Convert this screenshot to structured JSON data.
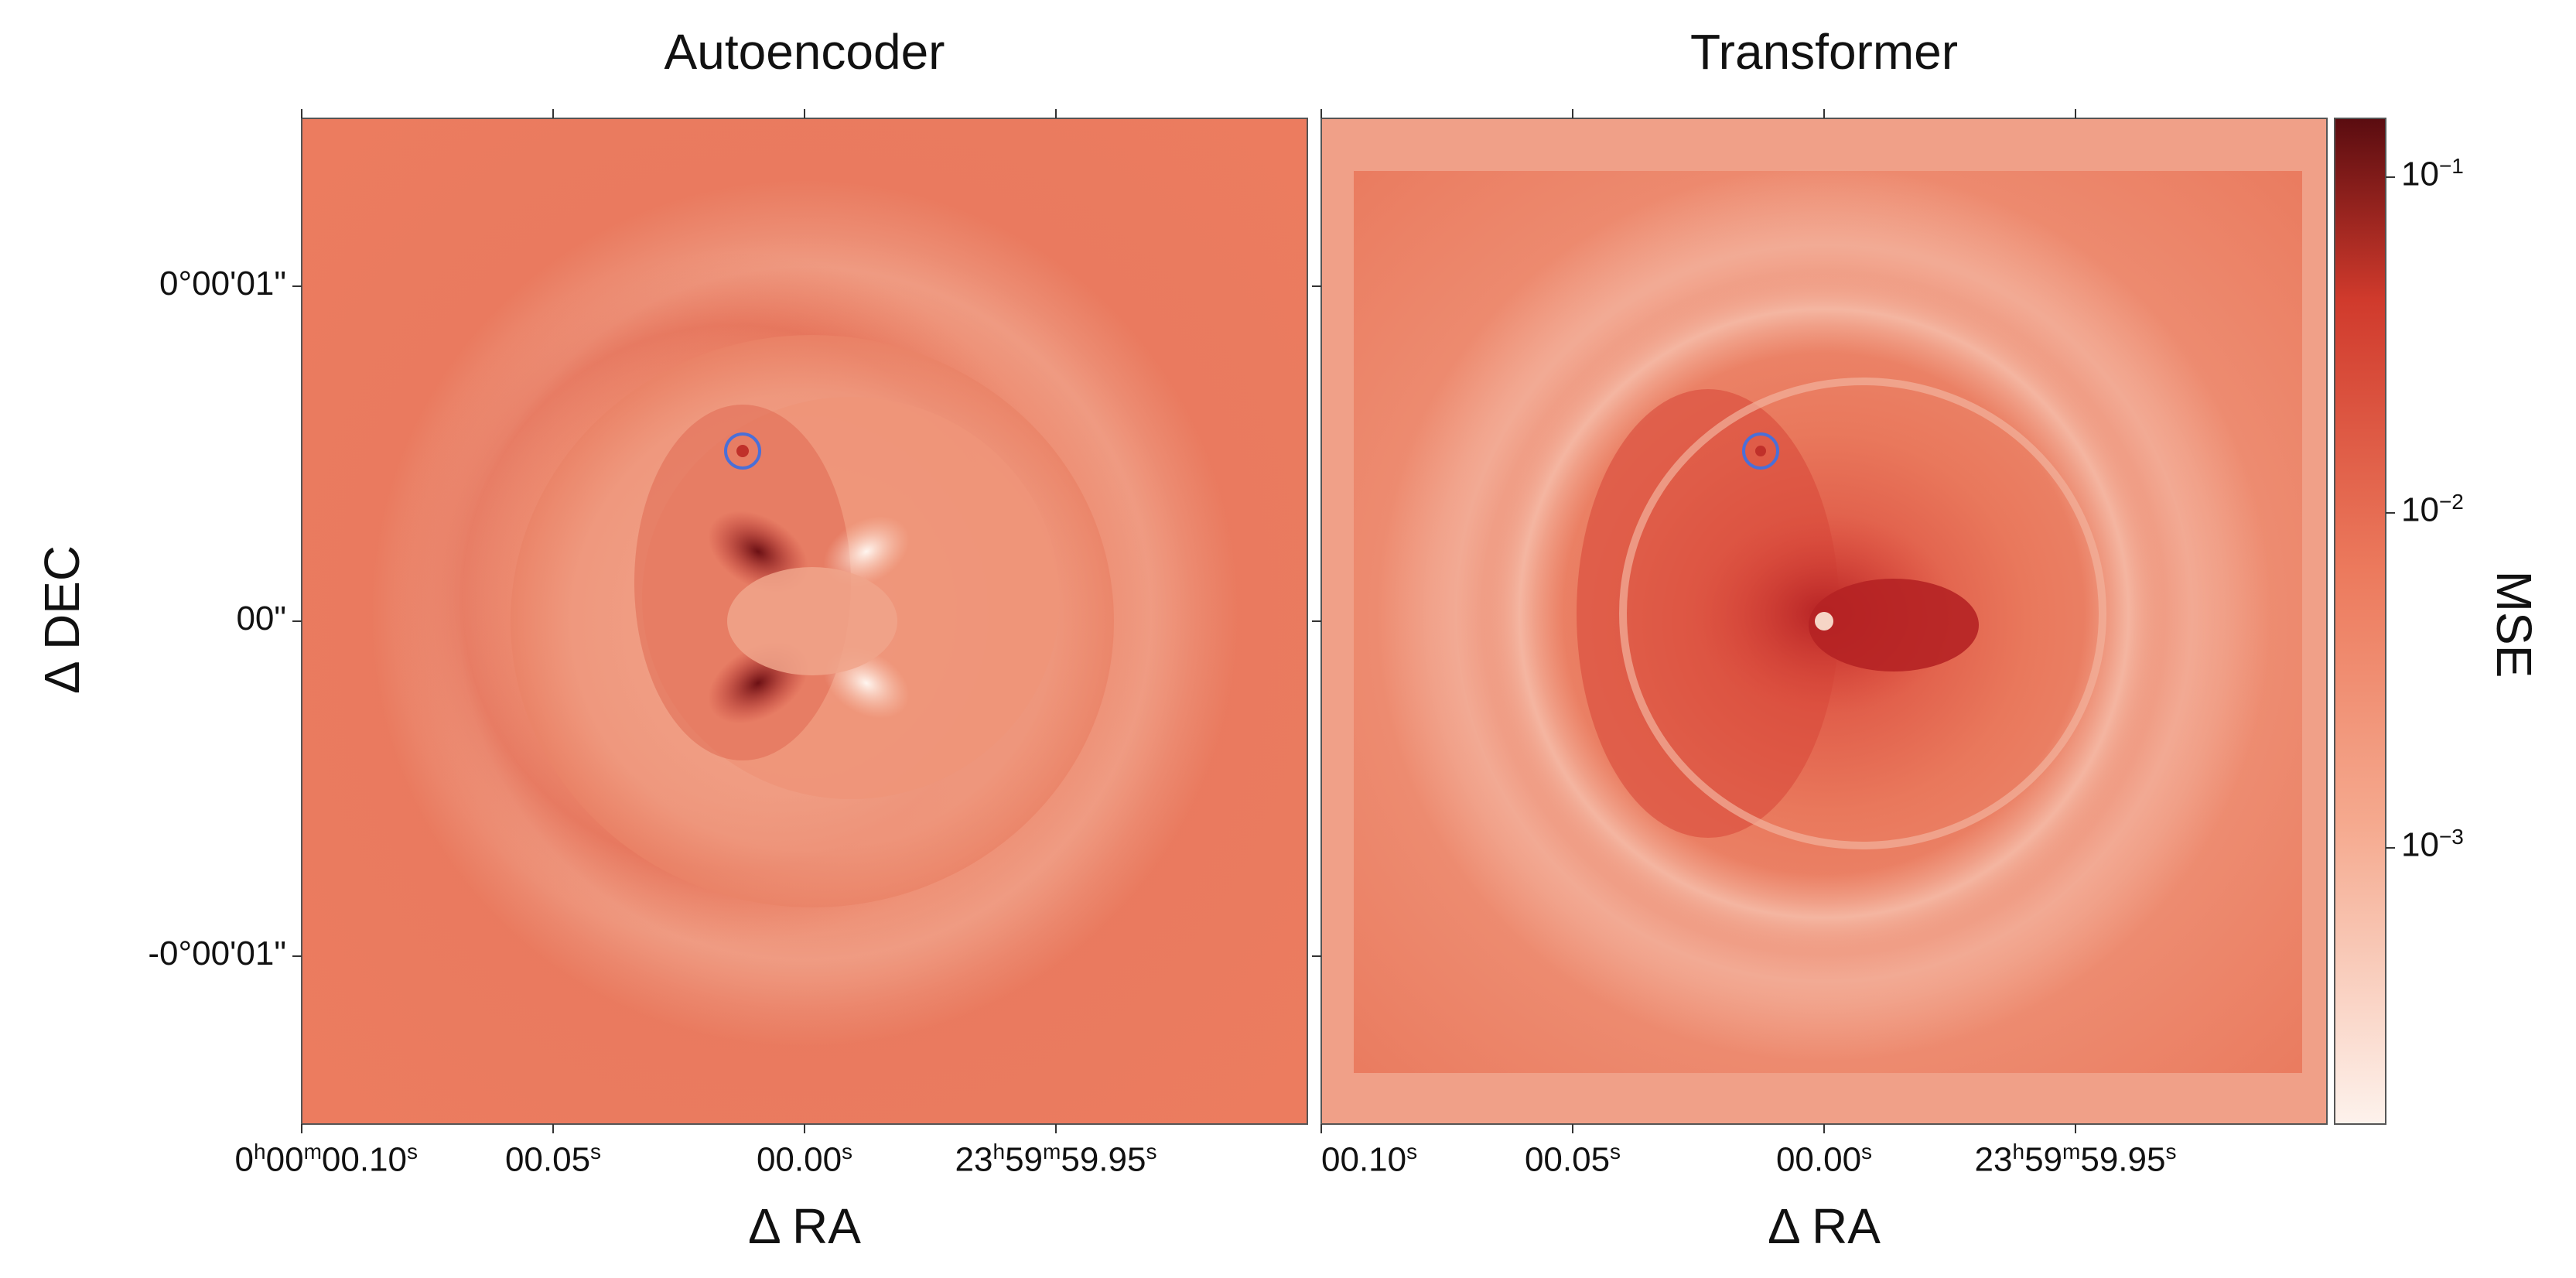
{
  "chart_data": [
    {
      "type": "heatmap",
      "title": "Autoencoder",
      "xlabel": "Δ RA",
      "ylabel": "Δ DEC",
      "x_ticks": [
        "0h00m00.10s",
        "00.05s",
        "00.00s",
        "23h59m59.95s"
      ],
      "y_ticks": [
        "0°00'01\"",
        "00\"",
        "-0°00'01\""
      ],
      "annotation": "blue circle marker near point source",
      "colormap": "Reds"
    },
    {
      "type": "heatmap",
      "title": "Transformer",
      "xlabel": "Δ RA",
      "x_ticks": [
        "00.10s",
        "00.05s",
        "00.00s",
        "23h59m59.95s"
      ],
      "annotation": "blue circle marker near point source",
      "colormap": "Reds"
    }
  ],
  "colorbar": {
    "label": "MSE",
    "scale": "log",
    "range": [
      0.00015,
      0.15
    ],
    "ticks": [
      {
        "base": "10",
        "exp": "−1",
        "value": 0.1
      },
      {
        "base": "10",
        "exp": "−2",
        "value": 0.01
      },
      {
        "base": "10",
        "exp": "−3",
        "value": 0.001
      }
    ],
    "colors": [
      "#fdf2ec",
      "#f5a98e",
      "#ec7a5d",
      "#d03a2c",
      "#5a0c10"
    ]
  },
  "marker_color": "#4a6fd8"
}
